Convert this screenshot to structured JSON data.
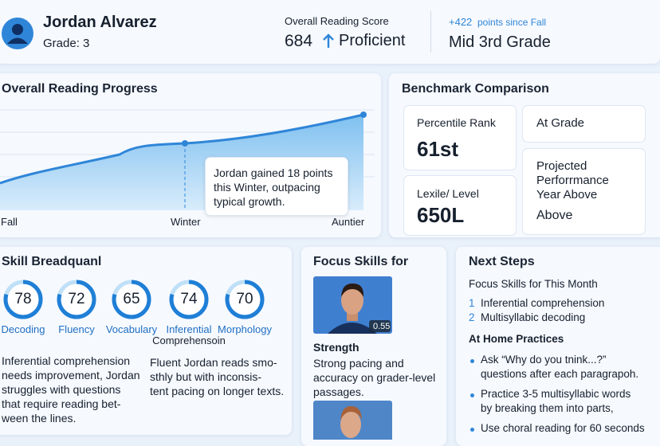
{
  "header": {
    "name": "Jordan Alvarez",
    "grade": "Grade: 3",
    "score_label": "Overall Reading Score",
    "score": "684",
    "level": "Proficient",
    "growth": "+422",
    "growth_suffix": "points since Fall",
    "grade_level": "Mid 3rd Grade"
  },
  "progress": {
    "title": "Overall Reading Progress",
    "x_labels": [
      "Fall",
      "Winter",
      "Auntier"
    ],
    "callout": [
      "Jordan gained 18 points",
      "this Winter, outpacing",
      "typical growth."
    ]
  },
  "benchmark": {
    "title": "Benchmark Comparison",
    "percentile_label": "Percentile Rank",
    "percentile": "61st",
    "lexile_label": "Lexile/ Level",
    "lexile": "650L",
    "at_grade": "At Grade",
    "projected_label": [
      "Projected",
      "Perforrmance",
      "Year Above"
    ],
    "projected": "Above"
  },
  "skills": {
    "title": "Skill Breadquanl",
    "items": [
      {
        "score": "78",
        "label": "Decoding"
      },
      {
        "score": "72",
        "label": "Fluency"
      },
      {
        "score": "65",
        "label": "Vocabulary"
      },
      {
        "score": "74",
        "label": "Inferential",
        "label2": "Comprehensoin"
      },
      {
        "score": "70",
        "label": "Morphology"
      }
    ],
    "note_left": [
      "Inferential comprehension",
      "needs improvement, Jordan",
      "struggles with questions",
      "that require reading bet-",
      "ween the lines."
    ],
    "note_right": [
      "Fluent Jordan reads smo-",
      "sthly but with inconsis-",
      "tent pacing on longer texts."
    ]
  },
  "focus": {
    "title": "Focus Skills  for",
    "badge": "0.55",
    "strength_title": "Strength",
    "strength": [
      "Strong pacing and",
      "accuracy on grader-level",
      "passages."
    ]
  },
  "next_steps": {
    "title": "Next Steps",
    "focus_title": "Focus Skills for This Month",
    "focus_items": [
      {
        "marker": "1",
        "text": "Inferential comprehension"
      },
      {
        "marker": "2",
        "text": "Multisyllabic decoding"
      }
    ],
    "home_title": "At Home Practices",
    "home_items": [
      [
        "Ask “Why do you tnink...?”",
        "questions after each paragrapoh."
      ],
      [
        "Practice 3-5 multisyllabic words",
        "by breaking them into parts,"
      ],
      [
        "Use choral reading for 60 seconds"
      ]
    ]
  }
}
